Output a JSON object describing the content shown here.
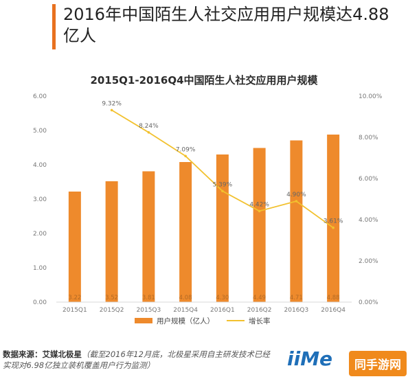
{
  "headline": "2016年中国陌生人社交应用用户规模达4.88亿人",
  "source": {
    "label": "数据来源：艾媒北极星",
    "note": "（截至2016年12月底，北极星采用自主研发技术已经实现对6.98亿独立装机覆盖用户行为监测）"
  },
  "logo_text": "iiMe",
  "corner_tag": "同手游网",
  "colors": {
    "bar": "#ee8a2c",
    "line": "#f2c12e",
    "accent": "#e8711f"
  },
  "chart_data": {
    "type": "bar",
    "title": "2015Q1-2016Q4中国陌生人社交应用用户规模",
    "categories": [
      "2015Q1",
      "2015Q2",
      "2015Q3",
      "2015Q4",
      "2016Q1",
      "2016Q2",
      "2016Q3",
      "2016Q4"
    ],
    "series": [
      {
        "name": "用户规模（亿人）",
        "type": "bar",
        "axis": "left",
        "values": [
          3.22,
          3.52,
          3.81,
          4.08,
          4.3,
          4.49,
          4.71,
          4.88
        ],
        "labels": [
          "3.22",
          "3.52",
          "3.81",
          "4.08",
          "4.30",
          "4.49",
          "4.71",
          "4.88"
        ]
      },
      {
        "name": "增长率",
        "type": "line",
        "axis": "right",
        "values": [
          null,
          9.32,
          8.24,
          7.09,
          5.39,
          4.42,
          4.9,
          3.61
        ],
        "labels": [
          "",
          "9.32%",
          "8.24%",
          "7.09%",
          "5.39%",
          "4.42%",
          "4.90%",
          "3.61%"
        ]
      }
    ],
    "y_left": {
      "ylim": [
        0,
        6
      ],
      "ticks": [
        "0.00",
        "1.00",
        "2.00",
        "3.00",
        "4.00",
        "5.00",
        "6.00"
      ]
    },
    "y_right": {
      "ylim": [
        0,
        10
      ],
      "ticks": [
        "0.00%",
        "2.00%",
        "4.00%",
        "6.00%",
        "8.00%",
        "10.00%"
      ]
    },
    "legend": "bottom",
    "grid": false
  }
}
